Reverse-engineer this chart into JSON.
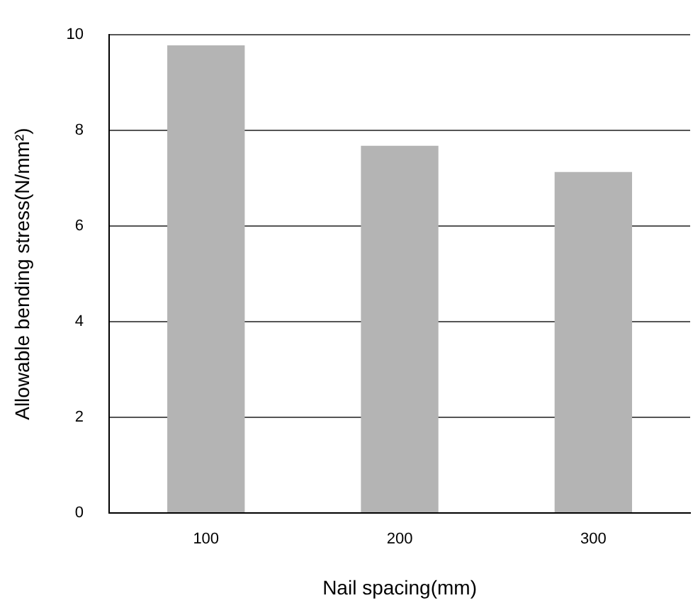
{
  "chart_data": {
    "type": "bar",
    "xlabel": "Nail spacing(mm)",
    "ylabel": "Allowable bending stress(N/mm²)",
    "categories": [
      "100",
      "200",
      "300"
    ],
    "values": [
      9.78,
      7.68,
      7.13
    ],
    "color": "#b4b4b4",
    "ylim": [
      0,
      10
    ],
    "yticks": [
      0,
      2,
      4,
      6,
      8,
      10
    ],
    "grid": "y"
  }
}
